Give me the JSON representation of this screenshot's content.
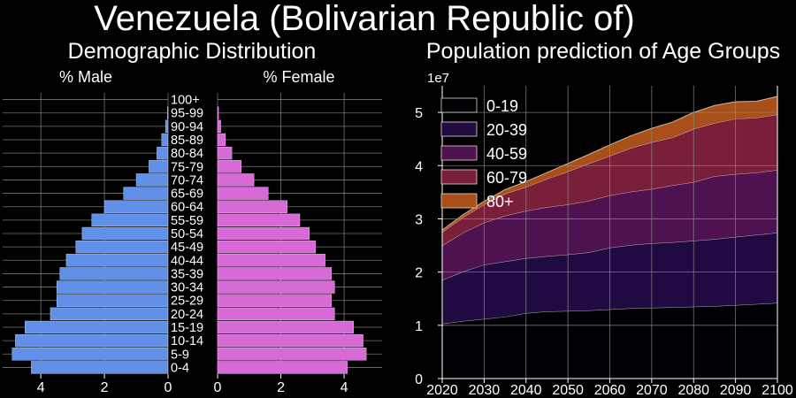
{
  "figure_title": "Venezuela (Bolivarian Republic of)",
  "colors": {
    "male": "#6090e8",
    "female": "#d86ad8",
    "area_fill": [
      "#000004",
      "#1f0a42",
      "#4e1250",
      "#7a1f3a",
      "#a84f1a"
    ]
  },
  "chart_data": [
    {
      "type": "bar",
      "orientation": "horizontal",
      "title": "Demographic Distribution",
      "categories": [
        "0-4",
        "5-9",
        "10-14",
        "15-19",
        "20-24",
        "25-29",
        "30-34",
        "35-39",
        "40-44",
        "45-49",
        "50-54",
        "55-59",
        "60-64",
        "65-69",
        "70-74",
        "75-79",
        "80-84",
        "85-89",
        "90-94",
        "95-99",
        "100+"
      ],
      "series": [
        {
          "name": "% Male",
          "values": [
            4.3,
            4.9,
            4.8,
            4.5,
            3.7,
            3.5,
            3.5,
            3.4,
            3.2,
            2.9,
            2.7,
            2.4,
            2.0,
            1.4,
            1.0,
            0.6,
            0.35,
            0.2,
            0.08,
            0.02,
            0.0
          ]
        },
        {
          "name": "% Female",
          "values": [
            4.1,
            4.7,
            4.6,
            4.3,
            3.7,
            3.6,
            3.7,
            3.6,
            3.4,
            3.1,
            2.9,
            2.6,
            2.2,
            1.6,
            1.15,
            0.75,
            0.45,
            0.25,
            0.1,
            0.03,
            0.0
          ]
        }
      ],
      "male_xticks": [
        "4",
        "2",
        "0"
      ],
      "female_xticks": [
        "0",
        "2",
        "4"
      ],
      "xlim": [
        0,
        5.2
      ]
    },
    {
      "type": "area",
      "stacked": true,
      "title": "Population prediction of Age Groups",
      "y_offset_label": "1e7",
      "x": [
        2020,
        2025,
        2030,
        2035,
        2040,
        2045,
        2050,
        2055,
        2060,
        2065,
        2070,
        2075,
        2080,
        2085,
        2090,
        2095,
        2100
      ],
      "series": [
        {
          "name": "0-19",
          "values": [
            1.03,
            1.08,
            1.12,
            1.16,
            1.23,
            1.26,
            1.27,
            1.28,
            1.3,
            1.32,
            1.33,
            1.34,
            1.35,
            1.36,
            1.38,
            1.4,
            1.42
          ]
        },
        {
          "name": "20-39",
          "values": [
            0.82,
            0.93,
            1.02,
            1.04,
            1.03,
            1.04,
            1.06,
            1.09,
            1.16,
            1.19,
            1.21,
            1.22,
            1.24,
            1.26,
            1.28,
            1.3,
            1.32
          ]
        },
        {
          "name": "40-59",
          "values": [
            0.65,
            0.73,
            0.79,
            0.86,
            0.89,
            0.92,
            0.94,
            0.97,
            0.98,
            1.0,
            1.02,
            1.07,
            1.1,
            1.18,
            1.18,
            1.17,
            1.18
          ]
        },
        {
          "name": "60-79",
          "values": [
            0.25,
            0.29,
            0.34,
            0.41,
            0.45,
            0.53,
            0.62,
            0.7,
            0.74,
            0.82,
            0.88,
            0.9,
            1.0,
            1.0,
            1.04,
            1.03,
            1.04
          ]
        },
        {
          "name": "80+",
          "values": [
            0.04,
            0.05,
            0.06,
            0.08,
            0.1,
            0.12,
            0.15,
            0.17,
            0.21,
            0.23,
            0.26,
            0.29,
            0.31,
            0.33,
            0.32,
            0.31,
            0.34
          ]
        }
      ],
      "yticks": [
        "0",
        "1",
        "2",
        "3",
        "4",
        "5"
      ],
      "ylim": [
        0,
        5.5
      ],
      "xlim": [
        2020,
        2100
      ],
      "legend": "top-left",
      "grid": true
    }
  ]
}
